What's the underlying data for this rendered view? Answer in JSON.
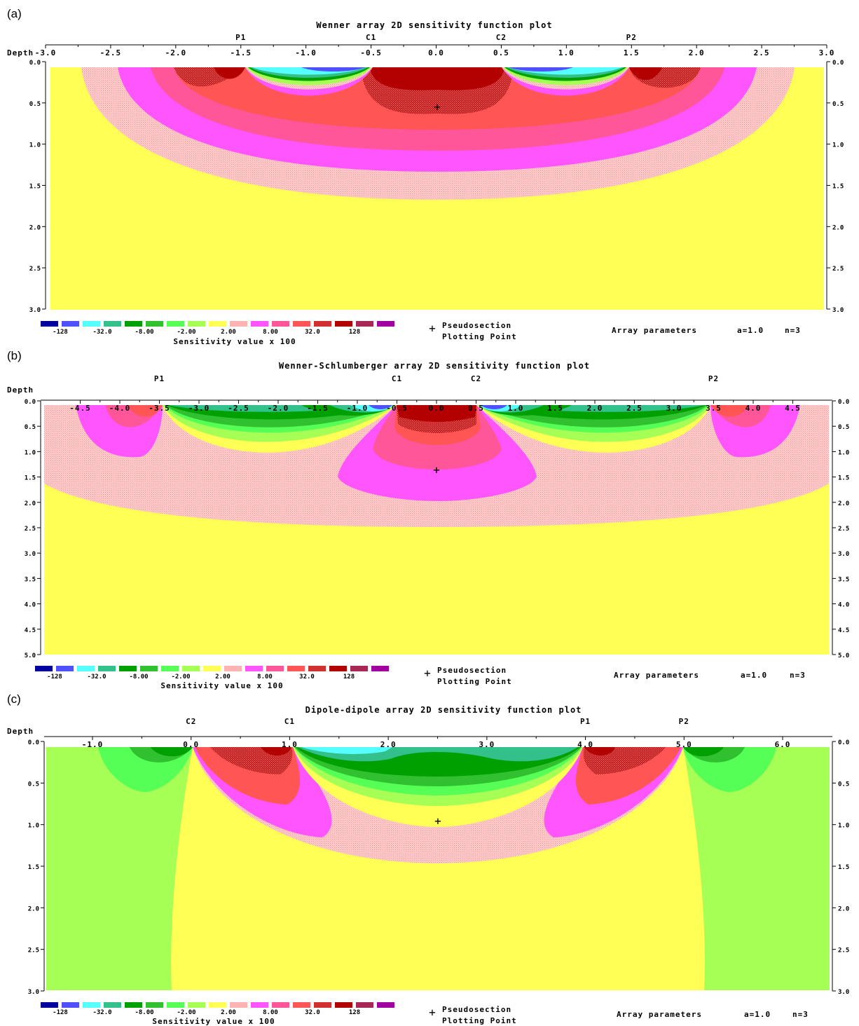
{
  "figure": {
    "legend_swatch_colors": [
      "#00009e",
      "#5050ff",
      "#55ffff",
      "#33c08a",
      "#00a000",
      "#30c030",
      "#55ff55",
      "#a6ff55",
      "#ffff55",
      "#ffb3b3",
      "#ff55ff",
      "#ff5599",
      "#ff5555",
      "#d03030",
      "#b30000",
      "#a82855",
      "#a000a0"
    ],
    "legend_tick_labels": [
      "-128",
      "-32.0",
      "-8.00",
      "-2.00",
      "2.00",
      "8.00",
      "32.0",
      "128"
    ],
    "legend_title": "Sensitivity value x 100",
    "pseudosection_label_1": "Pseudosection",
    "pseudosection_label_2": "Plotting Point",
    "array_parameters_label": "Array parameters",
    "depth_label": "Depth"
  },
  "chart_data": [
    {
      "panel": "(a)",
      "type": "heatmap",
      "title": "Wenner array 2D sensitivity function plot",
      "x_ticks": [
        "-3.0",
        "-2.5",
        "-2.0",
        "-1.5",
        "-1.0",
        "-0.5",
        "0.0",
        "0.5",
        "1.0",
        "1.5",
        "2.0",
        "2.5",
        "3.0"
      ],
      "x_tick_values": [
        -3.0,
        -2.5,
        -2.0,
        -1.5,
        -1.0,
        -0.5,
        0.0,
        0.5,
        1.0,
        1.5,
        2.0,
        2.5,
        3.0
      ],
      "y_ticks": [
        "0.0",
        "0.5",
        "1.0",
        "1.5",
        "2.0",
        "2.5",
        "3.0"
      ],
      "y_tick_values": [
        0.0,
        0.5,
        1.0,
        1.5,
        2.0,
        2.5,
        3.0
      ],
      "xlim": [
        -3.0,
        3.0
      ],
      "ylim": [
        0.0,
        3.0
      ],
      "electrodes": [
        {
          "label": "P1",
          "x": -1.5
        },
        {
          "label": "C1",
          "x": -0.5
        },
        {
          "label": "C2",
          "x": 0.5
        },
        {
          "label": "P2",
          "x": 1.5
        }
      ],
      "plotting_point": {
        "x": 0.0,
        "depth": 0.55
      },
      "array_parameters": {
        "a": "a=1.0",
        "n": "n=3"
      }
    },
    {
      "panel": "(b)",
      "type": "heatmap",
      "title": "Wenner-Schlumberger array 2D sensitivity function plot",
      "x_ticks": [
        "-4.5",
        "-4.0",
        "-3.5",
        "-3.0",
        "-2.5",
        "-2.0",
        "-1.5",
        "-1.0",
        "-0.5",
        "0.0",
        "0.5",
        "1.0",
        "1.5",
        "2.0",
        "2.5",
        "3.0",
        "3.5",
        "4.0",
        "4.5"
      ],
      "x_tick_values": [
        -4.5,
        -4.0,
        -3.5,
        -3.0,
        -2.5,
        -2.0,
        -1.5,
        -1.0,
        -0.5,
        0.0,
        0.5,
        1.0,
        1.5,
        2.0,
        2.5,
        3.0,
        3.5,
        4.0,
        4.5
      ],
      "y_ticks": [
        "0.0",
        "0.5",
        "1.0",
        "1.5",
        "2.0",
        "2.5",
        "3.0",
        "3.5",
        "4.0",
        "4.5",
        "5.0"
      ],
      "y_tick_values": [
        0.0,
        0.5,
        1.0,
        1.5,
        2.0,
        2.5,
        3.0,
        3.5,
        4.0,
        4.5,
        5.0
      ],
      "xlim": [
        -5.0,
        5.0
      ],
      "ylim": [
        0.0,
        5.0
      ],
      "electrodes": [
        {
          "label": "P1",
          "x": -3.5
        },
        {
          "label": "C1",
          "x": -0.5
        },
        {
          "label": "C2",
          "x": 0.5
        },
        {
          "label": "P2",
          "x": 3.5
        }
      ],
      "plotting_point": {
        "x": 0.0,
        "depth": 1.3
      },
      "array_parameters": {
        "a": "a=1.0",
        "n": "n=3"
      }
    },
    {
      "panel": "(c)",
      "type": "heatmap",
      "title": "Dipole-dipole array 2D sensitivity function plot",
      "x_ticks": [
        "-1.0",
        "0.0",
        "1.0",
        "2.0",
        "3.0",
        "4.0",
        "5.0",
        "6.0"
      ],
      "x_tick_values": [
        -1.0,
        0.0,
        1.0,
        2.0,
        3.0,
        4.0,
        5.0,
        6.0
      ],
      "y_ticks": [
        "0.0",
        "0.5",
        "1.0",
        "1.5",
        "2.0",
        "2.5",
        "3.0"
      ],
      "y_tick_values": [
        0.0,
        0.5,
        1.0,
        1.5,
        2.0,
        2.5,
        3.0
      ],
      "xlim": [
        -1.5,
        6.5
      ],
      "ylim": [
        0.0,
        3.0
      ],
      "electrodes": [
        {
          "label": "C2",
          "x": 0.0
        },
        {
          "label": "C1",
          "x": 1.0
        },
        {
          "label": "P1",
          "x": 4.0
        },
        {
          "label": "P2",
          "x": 5.0
        }
      ],
      "plotting_point": {
        "x": 2.5,
        "depth": 0.95
      },
      "array_parameters": {
        "a": "a=1.0",
        "n": "n=3"
      }
    }
  ]
}
